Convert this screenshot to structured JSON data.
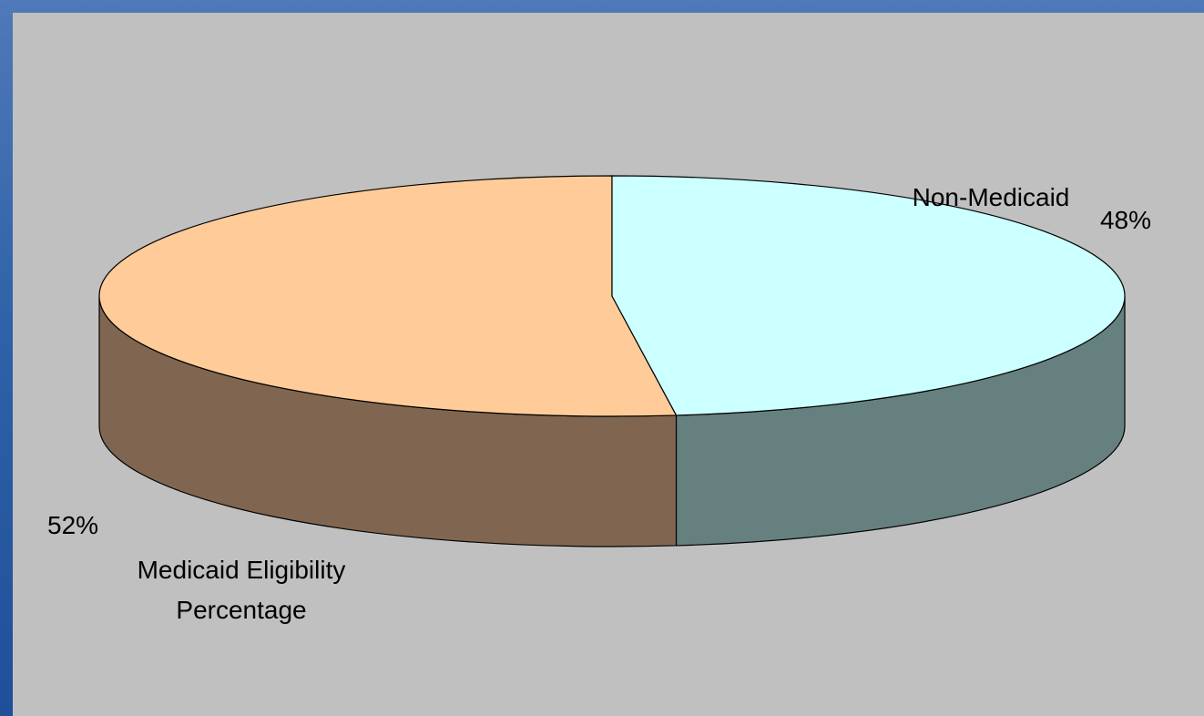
{
  "colors": {
    "background_left_stripe": "#3f6db0",
    "panel": "#c0c0c0",
    "medicaid_top": "#ffcc99",
    "medicaid_side": "#806650",
    "non_medicaid_top": "#ccffff",
    "non_medicaid_side": "#668080",
    "edge": "#000000"
  },
  "chart_data": {
    "type": "pie",
    "title": "",
    "three_d": true,
    "slices": [
      {
        "name": "Medicaid Eligibility Percentage",
        "label_lines": [
          "Medicaid Eligibility",
          "Percentage"
        ],
        "value": 52,
        "value_label": "52%"
      },
      {
        "name": "Non-Medicaid",
        "label_lines": [
          "Non-Medicaid"
        ],
        "value": 48,
        "value_label": "48%"
      }
    ]
  }
}
